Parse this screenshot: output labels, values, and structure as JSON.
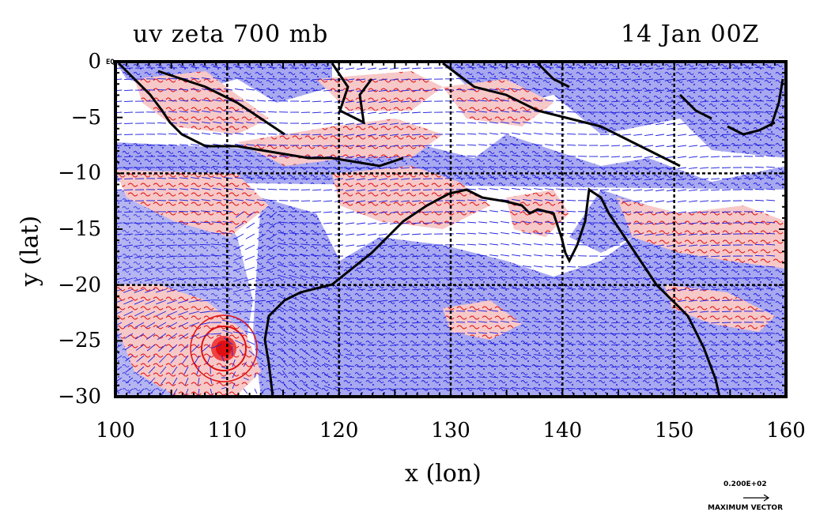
{
  "title_left": "uv zeta 700 mb",
  "title_right": "14 Jan 00Z",
  "xlabel": "x (lon)",
  "ylabel": "y (lat)",
  "corner_label": "EQ",
  "x_ticks": [
    "100",
    "110",
    "120",
    "130",
    "140",
    "150",
    "160"
  ],
  "y_ticks": [
    "0",
    "−5",
    "−10",
    "−15",
    "−20",
    "−25",
    "−30"
  ],
  "vector_ref": {
    "value": "0.200E+02",
    "label": "MAXIMUM VECTOR"
  },
  "colors": {
    "positive_fill": "#f7c8c8",
    "positive_line": "#e01010",
    "negative_fill": "#a8a8f0",
    "negative_line": "#2020e0",
    "land": "#000000",
    "grid": "#000000"
  },
  "chart_data": {
    "type": "map",
    "xlabel": "x (lon)",
    "ylabel": "y (lat)",
    "xlim": [
      100,
      160
    ],
    "ylim": [
      -30,
      0
    ],
    "grid": true,
    "gridlines_x": [
      110,
      120,
      130,
      140,
      150
    ],
    "gridlines_y": [
      -10,
      -20
    ],
    "fields": [
      "relative vorticity (shaded: red positive, blue negative)",
      "wind vectors"
    ],
    "features": [
      {
        "name": "cyclone",
        "lon": 109.8,
        "lat": -25.7
      }
    ]
  }
}
